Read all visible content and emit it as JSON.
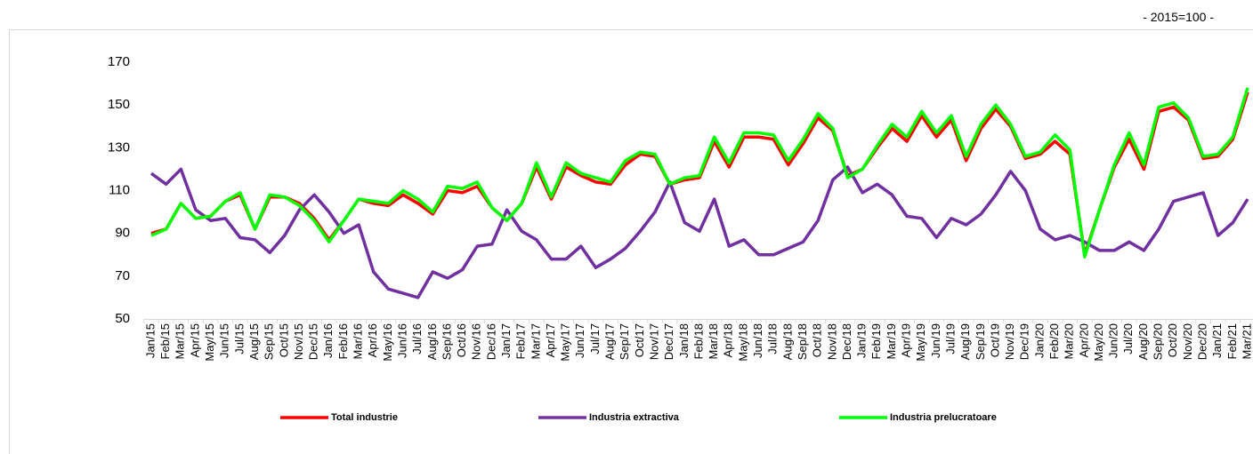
{
  "chart_data": {
    "type": "line",
    "annotation": "- 2015=100 -",
    "categories": [
      "Jan/15",
      "Feb/15",
      "Mar/15",
      "Apr/15",
      "May/15",
      "Jun/15",
      "Jul/15",
      "Aug/15",
      "Sep/15",
      "Oct/15",
      "Nov/15",
      "Dec/15",
      "Jan/16",
      "Feb/16",
      "Mar/16",
      "Apr/16",
      "May/16",
      "Jun/16",
      "Jul/16",
      "Aug/16",
      "Sep/16",
      "Oct/16",
      "Nov/16",
      "Dec/16",
      "Jan/17",
      "Feb/17",
      "Mar/17",
      "Apr/17",
      "May/17",
      "Jun/17",
      "Jul/17",
      "Aug/17",
      "Sep/17",
      "Oct/17",
      "Nov/17",
      "Dec/17",
      "Jan/18",
      "Feb/18",
      "Mar/18",
      "Apr/18",
      "May/18",
      "Jun/18",
      "Jul/18",
      "Aug/18",
      "Sep/18",
      "Oct/18",
      "Nov/18",
      "Dec/18",
      "Jan/19",
      "Feb/19",
      "Mar/19",
      "Apr/19",
      "May/19",
      "Jun/19",
      "Jul/19",
      "Aug/19",
      "Sep/19",
      "Oct/19",
      "Nov/19",
      "Dec/19",
      "Jan/20",
      "Feb/20",
      "Mar/20",
      "Apr/20",
      "May/20",
      "Jun/20",
      "Jul/20",
      "Aug/20",
      "Sep/20",
      "Oct/20",
      "Nov/20",
      "Dec/20",
      "Jan/21",
      "Feb/21",
      "Mar/21"
    ],
    "series": [
      {
        "name": "Total industrie",
        "color": "#ff0000",
        "values": [
          90,
          92,
          104,
          97,
          98,
          105,
          108,
          92,
          107,
          107,
          104,
          97,
          87,
          96,
          106,
          104,
          103,
          108,
          104,
          99,
          110,
          109,
          112,
          102,
          96,
          104,
          121,
          106,
          121,
          117,
          114,
          113,
          122,
          127,
          126,
          113,
          115,
          116,
          133,
          121,
          135,
          135,
          134,
          122,
          132,
          144,
          138,
          117,
          120,
          130,
          139,
          133,
          145,
          135,
          143,
          124,
          139,
          148,
          140,
          125,
          127,
          133,
          127,
          80,
          101,
          121,
          134,
          120,
          147,
          149,
          143,
          125,
          126,
          134,
          156
        ]
      },
      {
        "name": "Industria extractiva",
        "color": "#7030a0",
        "values": [
          118,
          113,
          120,
          101,
          96,
          97,
          88,
          87,
          81,
          89,
          101,
          108,
          100,
          90,
          94,
          72,
          64,
          62,
          60,
          72,
          69,
          73,
          84,
          85,
          101,
          91,
          87,
          78,
          78,
          84,
          74,
          78,
          83,
          91,
          100,
          114,
          95,
          91,
          106,
          84,
          87,
          80,
          80,
          83,
          86,
          96,
          115,
          121,
          109,
          113,
          108,
          98,
          97,
          88,
          97,
          94,
          99,
          108,
          119,
          110,
          92,
          87,
          89,
          86,
          82,
          82,
          86,
          82,
          92,
          105,
          107,
          109,
          89,
          95,
          106
        ]
      },
      {
        "name": "Industria prelucratoare",
        "color": "#00ff00",
        "values": [
          89,
          92,
          104,
          97,
          98,
          105,
          109,
          92,
          108,
          107,
          103,
          96,
          86,
          96,
          106,
          105,
          104,
          110,
          106,
          100,
          112,
          111,
          114,
          102,
          96,
          104,
          123,
          107,
          123,
          118,
          116,
          114,
          124,
          128,
          127,
          113,
          116,
          117,
          135,
          123,
          137,
          137,
          136,
          124,
          134,
          146,
          139,
          116,
          120,
          131,
          141,
          135,
          147,
          137,
          145,
          126,
          141,
          150,
          141,
          126,
          128,
          136,
          129,
          79,
          101,
          122,
          137,
          122,
          149,
          151,
          144,
          126,
          127,
          135,
          158
        ]
      }
    ],
    "ylim": [
      50,
      170
    ],
    "yticks": [
      50,
      70,
      90,
      110,
      130,
      150,
      170
    ],
    "grid": false,
    "legend": "bottom"
  }
}
